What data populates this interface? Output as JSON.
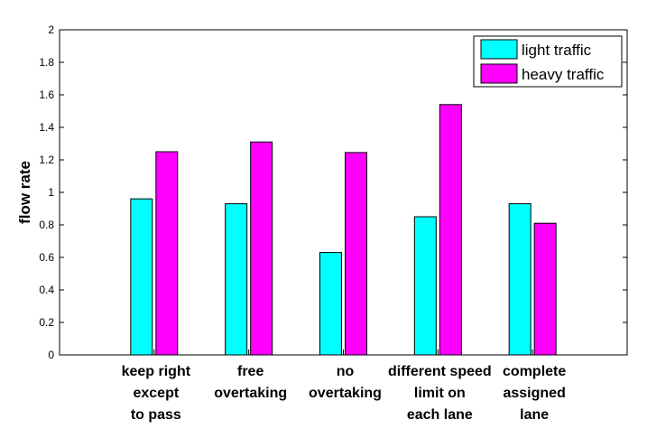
{
  "chart_data": {
    "type": "bar",
    "title": "",
    "xlabel": "",
    "ylabel": "flow rate",
    "ylim": [
      0,
      2
    ],
    "yticks": [
      0,
      0.2,
      0.4,
      0.6,
      0.8,
      1,
      1.2,
      1.4,
      1.6,
      1.8,
      2
    ],
    "ytick_labels": [
      "0",
      "0.2",
      "0.4",
      "0.6",
      "0.8",
      "1",
      "1.2",
      "1.4",
      "1.6",
      "1.8",
      "2"
    ],
    "grid": false,
    "legend_position": "top-right",
    "categories": [
      [
        "keep right",
        "except",
        "to pass"
      ],
      [
        "free",
        "overtaking"
      ],
      [
        "no",
        "overtaking"
      ],
      [
        "different speed",
        "limit on",
        "each lane"
      ],
      [
        "complete",
        "assigned",
        "lane"
      ]
    ],
    "series": [
      {
        "name": "light traffic",
        "color": "#00ffff",
        "values": [
          0.96,
          0.93,
          0.63,
          0.85,
          0.93
        ]
      },
      {
        "name": "heavy traffic",
        "color": "#ff00ff",
        "values": [
          1.25,
          1.31,
          1.245,
          1.54,
          0.81
        ]
      }
    ]
  }
}
